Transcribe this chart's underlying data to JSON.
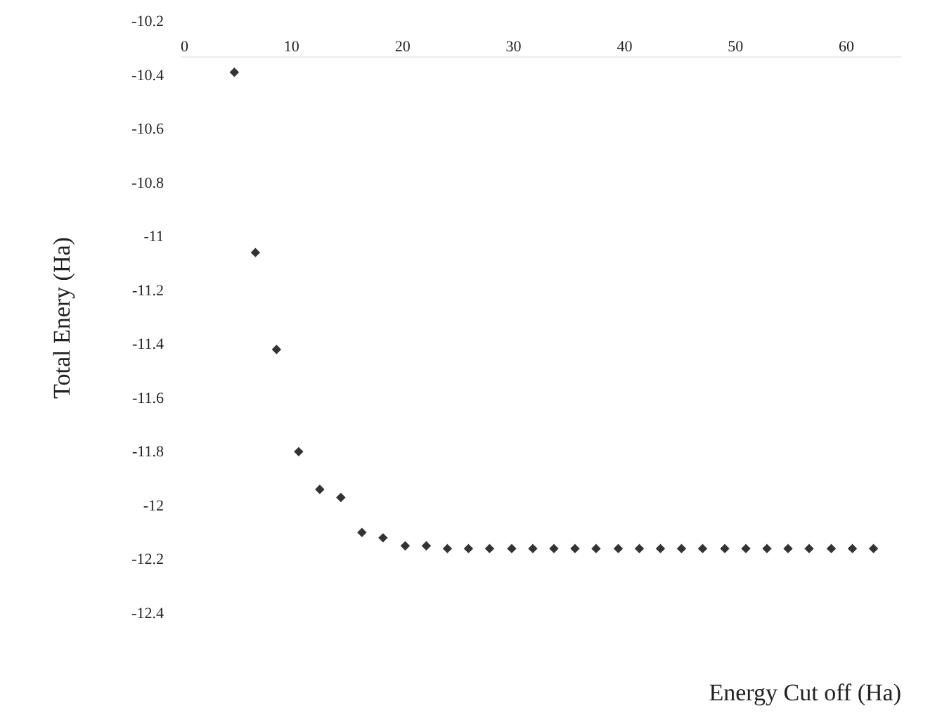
{
  "chart_data": {
    "type": "scatter",
    "xlabel": "Energy Cut off (Ha)",
    "ylabel": "Total Enery (Ha)",
    "marker": "diamond",
    "grid": false,
    "x": [
      4.9,
      6.8,
      8.7,
      10.7,
      12.6,
      14.5,
      16.4,
      18.3,
      20.3,
      22.2,
      24.1,
      26,
      27.9,
      29.9,
      31.8,
      33.7,
      35.6,
      37.5,
      39.5,
      41.4,
      43.3,
      45.2,
      47.1,
      49.1,
      51,
      52.9,
      54.8,
      56.7,
      58.7,
      60.6,
      62.5
    ],
    "series": [
      {
        "color": "#333333",
        "values": [
          -10.39,
          -11.06,
          -11.42,
          -11.8,
          -11.94,
          -11.97,
          -12.1,
          -12.12,
          -12.15,
          -12.15,
          -12.16,
          -12.16,
          -12.16,
          -12.16,
          -12.16,
          -12.16,
          -12.16,
          -12.16,
          -12.16,
          -12.16,
          -12.16,
          -12.16,
          -12.16,
          -12.16,
          -12.16,
          -12.16,
          -12.16,
          -12.16,
          -12.16,
          -12.16,
          -12.16
        ]
      }
    ],
    "xlim": [
      0,
      65
    ],
    "xticks": [
      0,
      10,
      20,
      30,
      40,
      50,
      60
    ],
    "ylim": [
      -12.4,
      -10.2
    ],
    "yticks": [
      -10.2,
      -10.4,
      -10.6,
      -10.8,
      -11,
      -11.2,
      -11.4,
      -11.6,
      -11.8,
      -12,
      -12.2,
      -12.4
    ]
  }
}
